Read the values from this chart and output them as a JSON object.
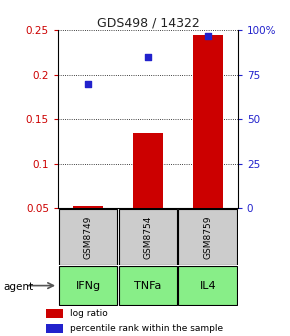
{
  "title": "GDS498 / 14322",
  "samples": [
    "GSM8749",
    "GSM8754",
    "GSM8759"
  ],
  "agents": [
    "IFNg",
    "TNFa",
    "IL4"
  ],
  "log_ratios": [
    0.053,
    0.135,
    0.245
  ],
  "percentile_ranks": [
    70.0,
    85.0,
    97.0
  ],
  "ylim_left": [
    0.05,
    0.25
  ],
  "ylim_right": [
    0.0,
    100.0
  ],
  "yticks_left": [
    0.05,
    0.1,
    0.15,
    0.2,
    0.25
  ],
  "yticks_right": [
    0,
    25,
    50,
    75,
    100
  ],
  "ytick_labels_right": [
    "0",
    "25",
    "50",
    "75",
    "100%"
  ],
  "bar_color": "#cc0000",
  "marker_color": "#2222cc",
  "sample_box_color": "#cccccc",
  "agent_box_color": "#88ee88",
  "bar_width": 0.5,
  "legend_bar_label": "log ratio",
  "legend_marker_label": "percentile rank within the sample",
  "title_color": "#222222",
  "left_tick_color": "#cc0000",
  "right_tick_color": "#2222cc"
}
